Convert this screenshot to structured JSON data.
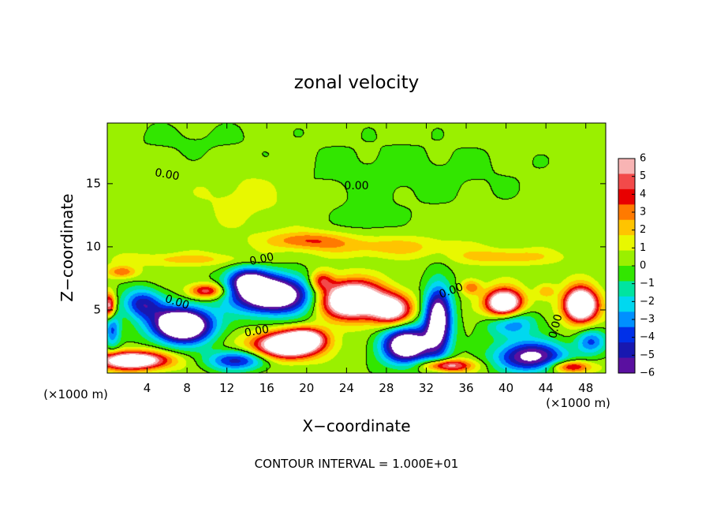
{
  "chart_data": {
    "type": "heatmap",
    "title": "zonal velocity",
    "xlabel": "X−coordinate",
    "ylabel": "Z−coordinate",
    "x_unit_left": "(×1000 m)",
    "x_unit_right": "(×1000 m)",
    "xlim": [
      0,
      50
    ],
    "ylim": [
      0,
      19.8
    ],
    "x_ticks": [
      4,
      8,
      12,
      16,
      20,
      24,
      28,
      32,
      36,
      40,
      44,
      48
    ],
    "y_ticks": [
      5,
      10,
      15
    ],
    "footer": "CONTOUR INTERVAL = 1.000E+01",
    "colorbar": {
      "range": [
        -6,
        6
      ],
      "ticks": [
        6,
        5,
        4,
        3,
        2,
        1,
        0,
        -1,
        -2,
        -3,
        -4,
        -5,
        -6
      ],
      "tick_labels": [
        "6",
        "5",
        "4",
        "3",
        "2",
        "1",
        "0",
        "−1",
        "−2",
        "−3",
        "−4",
        "−5",
        "−6"
      ],
      "colors": [
        "#f8b4b4",
        "#f24a4a",
        "#e80000",
        "#ff7a00",
        "#ffc400",
        "#e8f800",
        "#9af000",
        "#32e600",
        "#00e4a0",
        "#00d8f0",
        "#0090ff",
        "#0030e8",
        "#1818b0",
        "#5a10a0"
      ]
    },
    "contour_labels": [
      {
        "text": "0.00",
        "x": 6.0,
        "z": 15.7,
        "angle": 10
      },
      {
        "text": "0.00",
        "x": 25.0,
        "z": 14.8,
        "angle": 0
      },
      {
        "text": "0.00",
        "x": 15.5,
        "z": 9.0,
        "angle": -12
      },
      {
        "text": "0.00",
        "x": 7.0,
        "z": 5.6,
        "angle": 18
      },
      {
        "text": "0.00",
        "x": 15.0,
        "z": 3.3,
        "angle": -10
      },
      {
        "text": "0.00",
        "x": 34.5,
        "z": 6.5,
        "angle": -20
      },
      {
        "text": "0.00",
        "x": 45.0,
        "z": 3.7,
        "angle": -75
      }
    ],
    "background_value": 0.4,
    "features": [
      {
        "x": 29.0,
        "z": 15.8,
        "sx": 14,
        "sz": 3.0,
        "v": -0.7
      },
      {
        "x": 8.0,
        "z": 18.5,
        "sx": 8,
        "sz": 1.5,
        "v": -0.5
      },
      {
        "x": 14.0,
        "z": 14.0,
        "sx": 5,
        "sz": 2.5,
        "v": 0.9
      },
      {
        "x": 26.0,
        "z": 12.2,
        "sx": 2.5,
        "sz": 1.2,
        "v": -0.8
      },
      {
        "x": 20.0,
        "z": 10.5,
        "sx": 4,
        "sz": 0.7,
        "v": 2.8
      },
      {
        "x": 28.0,
        "z": 10.0,
        "sx": 7,
        "sz": 0.8,
        "v": 1.8
      },
      {
        "x": 40.0,
        "z": 9.2,
        "sx": 5,
        "sz": 0.6,
        "v": 2.0
      },
      {
        "x": 8.0,
        "z": 9.0,
        "sx": 6,
        "sz": 0.5,
        "v": 1.7
      },
      {
        "x": 1.5,
        "z": 8.0,
        "sx": 1.5,
        "sz": 0.5,
        "v": 3.0
      },
      {
        "x": 7.5,
        "z": 3.8,
        "sx": 3.0,
        "sz": 1.4,
        "v": -11
      },
      {
        "x": 3.5,
        "z": 5.5,
        "sx": 2.0,
        "sz": 1.2,
        "v": -5
      },
      {
        "x": 16.5,
        "z": 6.2,
        "sx": 4.0,
        "sz": 1.5,
        "v": -10
      },
      {
        "x": 14.0,
        "z": 7.4,
        "sx": 2.0,
        "sz": 1.0,
        "v": -5
      },
      {
        "x": 30.0,
        "z": 2.2,
        "sx": 2.5,
        "sz": 1.5,
        "v": -9
      },
      {
        "x": 33.2,
        "z": 4.2,
        "sx": 1.4,
        "sz": 2.8,
        "v": -8
      },
      {
        "x": 42.5,
        "z": 1.3,
        "sx": 3.5,
        "sz": 1.2,
        "v": -7
      },
      {
        "x": 40.5,
        "z": 4.0,
        "sx": 2.5,
        "sz": 1.2,
        "v": -4
      },
      {
        "x": 13.0,
        "z": 1.0,
        "sx": 3.0,
        "sz": 0.8,
        "v": -5
      },
      {
        "x": 0.5,
        "z": 3.5,
        "sx": 0.8,
        "sz": 1.5,
        "v": -4
      },
      {
        "x": 48.5,
        "z": 2.5,
        "sx": 1.5,
        "sz": 1.0,
        "v": -4
      },
      {
        "x": 24.5,
        "z": 5.8,
        "sx": 3.0,
        "sz": 1.4,
        "v": 11
      },
      {
        "x": 28.5,
        "z": 5.0,
        "sx": 2.0,
        "sz": 1.2,
        "v": 7
      },
      {
        "x": 18.0,
        "z": 2.2,
        "sx": 3.2,
        "sz": 1.0,
        "v": 10
      },
      {
        "x": 20.0,
        "z": 2.8,
        "sx": 2.0,
        "sz": 0.8,
        "v": 5
      },
      {
        "x": 39.8,
        "z": 5.5,
        "sx": 1.8,
        "sz": 1.1,
        "v": 10
      },
      {
        "x": 47.5,
        "z": 5.4,
        "sx": 1.6,
        "sz": 1.3,
        "v": 11
      },
      {
        "x": 2.5,
        "z": 1.0,
        "sx": 3.5,
        "sz": 0.7,
        "v": 9
      },
      {
        "x": 34.0,
        "z": 0.6,
        "sx": 2.5,
        "sz": 0.5,
        "v": 6
      },
      {
        "x": 46.5,
        "z": 0.5,
        "sx": 2.0,
        "sz": 0.5,
        "v": 5
      },
      {
        "x": 0.2,
        "z": 5.3,
        "sx": 0.6,
        "sz": 1.0,
        "v": 6
      },
      {
        "x": 10.0,
        "z": 6.5,
        "sx": 1.8,
        "sz": 0.6,
        "v": 5
      },
      {
        "x": 21.5,
        "z": 7.3,
        "sx": 1.2,
        "sz": 0.8,
        "v": 4
      },
      {
        "x": 36.5,
        "z": 6.8,
        "sx": 1.0,
        "sz": 0.6,
        "v": 3
      },
      {
        "x": 44.0,
        "z": 6.5,
        "sx": 1.0,
        "sz": 0.6,
        "v": 2
      }
    ]
  }
}
